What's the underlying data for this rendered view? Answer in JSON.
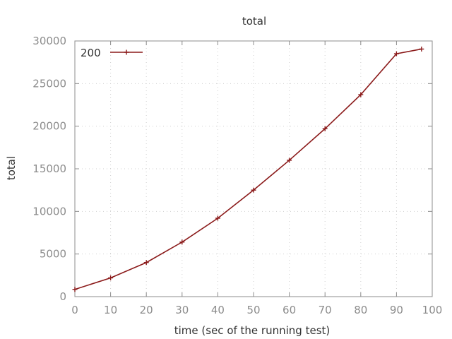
{
  "chart_data": {
    "type": "line",
    "title": "total",
    "xlabel": "time (sec of the running test)",
    "ylabel": "total",
    "xlim": [
      0,
      100
    ],
    "ylim": [
      0,
      30000
    ],
    "x_ticks": [
      0,
      10,
      20,
      30,
      40,
      50,
      60,
      70,
      80,
      90,
      100
    ],
    "x_tick_labels": [
      "0",
      "10",
      "20",
      "30",
      "40",
      "50",
      "60",
      "70",
      "80",
      "90",
      "100"
    ],
    "y_ticks": [
      0,
      5000,
      10000,
      15000,
      20000,
      25000,
      30000
    ],
    "y_tick_labels": [
      "0",
      "5000",
      "10000",
      "15000",
      "20000",
      "25000",
      "30000"
    ],
    "grid": true,
    "legend_position": "top-left",
    "series": [
      {
        "name": "200",
        "color": "#8b1a1a",
        "marker": "plus",
        "x": [
          0,
          10,
          20,
          30,
          40,
          50,
          60,
          70,
          80,
          90,
          97
        ],
        "values": [
          850,
          2200,
          4000,
          6400,
          9200,
          12500,
          16000,
          19700,
          23700,
          28500,
          29050
        ]
      }
    ]
  }
}
